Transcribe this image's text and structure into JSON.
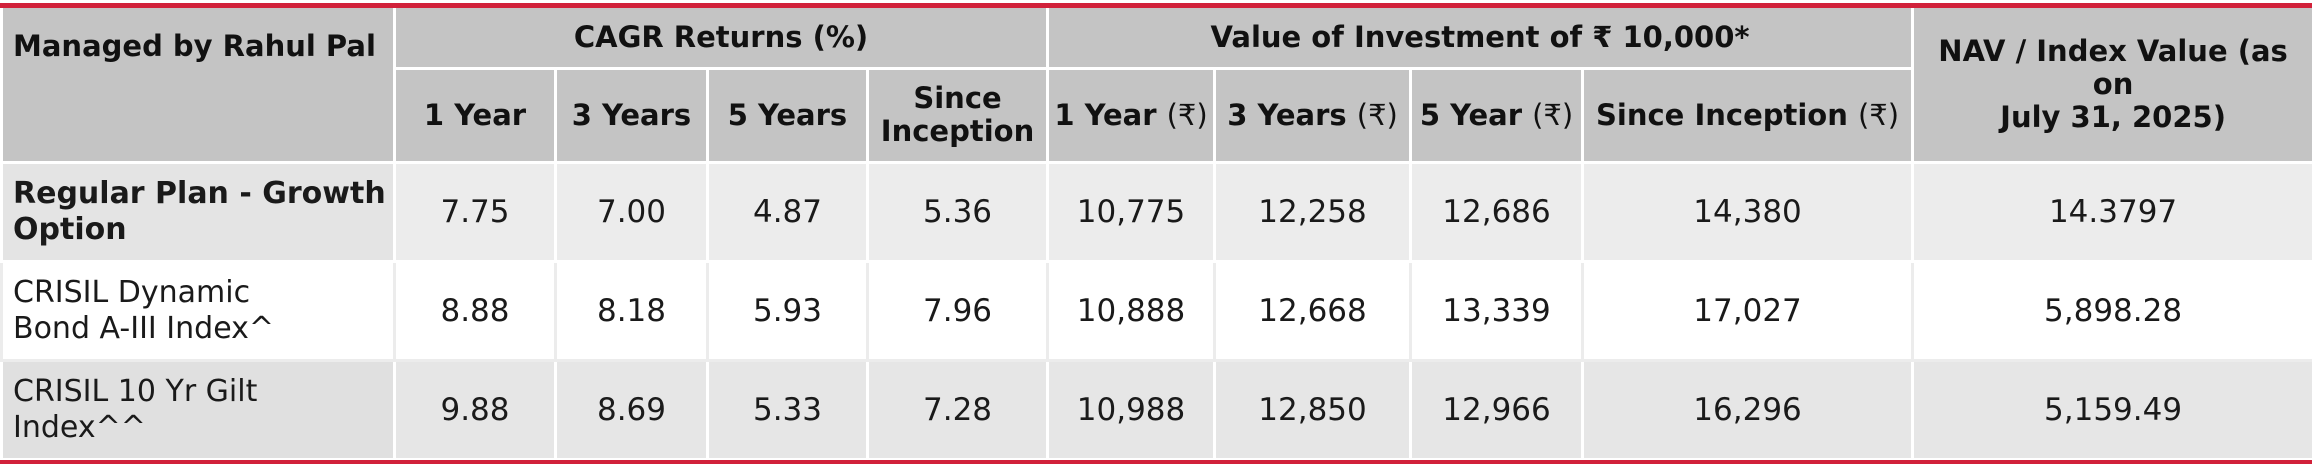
{
  "header": {
    "managed_by": "Managed by Rahul Pal",
    "group_cagr": "CAGR Returns (%)",
    "group_value": "Value of Investment of ₹ 10,000*",
    "nav_line1": "NAV / Index Value (as on",
    "nav_line2": "July 31, 2025)",
    "cagr_cols": [
      "1 Year",
      "3 Years",
      "5 Years",
      "Since",
      "Inception"
    ],
    "value_cols": [
      "1 Year",
      "(₹)",
      "3 Years",
      "(₹)",
      "5 Year",
      "(₹)",
      "Since Inception",
      "(₹)"
    ]
  },
  "rows": [
    {
      "label_line1": "Regular Plan - Growth",
      "label_line2": "Option",
      "cagr": [
        "7.75",
        "7.00",
        "4.87",
        "5.36"
      ],
      "value": [
        "10,775",
        "12,258",
        "12,686",
        "14,380"
      ],
      "nav": "14.3797"
    },
    {
      "label_line1": "CRISIL Dynamic",
      "label_line2": "Bond A-III Index^",
      "cagr": [
        "8.88",
        "8.18",
        "5.93",
        "7.96"
      ],
      "value": [
        "10,888",
        "12,668",
        "13,339",
        "17,027"
      ],
      "nav": "5,898.28"
    },
    {
      "label_line1": "CRISIL 10 Yr Gilt",
      "label_line2": "Index^^",
      "cagr": [
        "9.88",
        "8.69",
        "5.33",
        "7.28"
      ],
      "value": [
        "10,988",
        "12,850",
        "12,966",
        "16,296"
      ],
      "nav": "5,159.49"
    }
  ]
}
